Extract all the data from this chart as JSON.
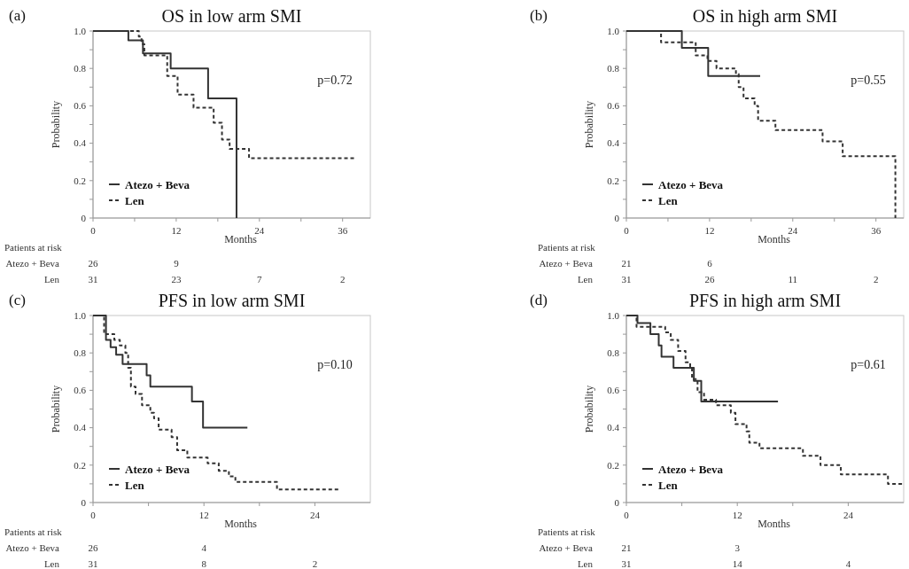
{
  "chart_data": [
    {
      "type": "step",
      "title": "OS in low arm SMI",
      "xlabel": "Months",
      "ylabel": "Probability",
      "xlim": [
        0,
        40
      ],
      "xticks": [
        0,
        {
          "value": 6,
          "label": null
        },
        12,
        {
          "value": 18,
          "label": null
        },
        24,
        {
          "value": 30,
          "label": null
        },
        36
      ],
      "ylim": [
        0,
        1
      ],
      "yticks": [
        0,
        {
          "value": 0.1,
          "label": null
        },
        0.2,
        {
          "value": 0.3,
          "label": null
        },
        0.4,
        {
          "value": 0.5,
          "label": null
        },
        0.6,
        {
          "value": 0.7,
          "label": null
        },
        0.8,
        {
          "value": 0.9,
          "label": null
        },
        {
          "value": 1,
          "label": "1.0"
        }
      ],
      "legend": "bottom left",
      "grid": false,
      "series": [
        {
          "name": "Atezo + Beva",
          "color": "#333333",
          "line_style": "solid",
          "x": [
            0,
            5.1,
            7.2,
            11.2,
            16.6,
            20.7
          ],
          "values": [
            1,
            0.95,
            0.88,
            0.8,
            0.64,
            0
          ]
        },
        {
          "name": "Len",
          "color": "#333333",
          "line_style": "dashed",
          "x": [
            0,
            6.6,
            7.0,
            7.4,
            10.7,
            12.2,
            14.5,
            17.4,
            18.6,
            19.7,
            22.5,
            38.0
          ],
          "values": [
            1,
            0.97,
            0.93,
            0.87,
            0.76,
            0.66,
            0.59,
            0.51,
            0.42,
            0.37,
            0.32,
            0.32
          ]
        }
      ],
      "annotations": [
        "(a)",
        "p=0.72",
        "Patients at risk",
        "26",
        "9",
        "31",
        "23",
        "7",
        "2"
      ]
    },
    {
      "type": "step",
      "title": "OS in high arm SMI",
      "xlabel": "Months",
      "ylabel": "Probability",
      "xlim": [
        0,
        40
      ],
      "xticks": [
        0,
        {
          "value": 6,
          "label": null
        },
        12,
        {
          "value": 18,
          "label": null
        },
        24,
        {
          "value": 30,
          "label": null
        },
        36
      ],
      "ylim": [
        0,
        1
      ],
      "yticks": [
        0,
        {
          "value": 0.1,
          "label": null
        },
        0.2,
        {
          "value": 0.3,
          "label": null
        },
        0.4,
        {
          "value": 0.5,
          "label": null
        },
        0.6,
        {
          "value": 0.7,
          "label": null
        },
        0.8,
        {
          "value": 0.9,
          "label": null
        },
        {
          "value": 1,
          "label": "1.0"
        }
      ],
      "legend": "bottom left",
      "grid": false,
      "series": [
        {
          "name": "Atezo + Beva",
          "color": "#333333",
          "line_style": "solid",
          "x": [
            0,
            8.0,
            11.8,
            19.3
          ],
          "values": [
            1,
            0.91,
            0.76,
            0.76
          ]
        },
        {
          "name": "Len",
          "color": "#333333",
          "line_style": "dashed",
          "x": [
            0,
            5.0,
            10.0,
            11.7,
            13.0,
            15.8,
            16.2,
            16.9,
            18.5,
            19.0,
            21.5,
            28.3,
            31.2,
            38.8
          ],
          "values": [
            1,
            0.94,
            0.87,
            0.84,
            0.8,
            0.77,
            0.7,
            0.64,
            0.6,
            0.52,
            0.47,
            0.41,
            0.33,
            0
          ]
        }
      ],
      "annotations": [
        "(b)",
        "p=0.55",
        "Patients at risk",
        "21",
        "6",
        "31",
        "26",
        "11",
        "2"
      ]
    },
    {
      "type": "step",
      "title": "PFS in low arm SMI",
      "xlabel": "Months",
      "ylabel": "Probability",
      "xlim": [
        0,
        30
      ],
      "xticks": [
        0,
        {
          "value": 6,
          "label": null
        },
        12,
        {
          "value": 18,
          "label": null
        },
        24
      ],
      "ylim": [
        0,
        1
      ],
      "yticks": [
        0,
        {
          "value": 0.1,
          "label": null
        },
        0.2,
        {
          "value": 0.3,
          "label": null
        },
        0.4,
        {
          "value": 0.5,
          "label": null
        },
        0.6,
        {
          "value": 0.7,
          "label": null
        },
        0.8,
        {
          "value": 0.9,
          "label": null
        },
        {
          "value": 1,
          "label": "1.0"
        }
      ],
      "legend": "bottom left",
      "grid": false,
      "series": [
        {
          "name": "Atezo + Beva",
          "color": "#333333",
          "line_style": "solid",
          "x": [
            0,
            1.4,
            1.9,
            2.5,
            3.2,
            5.8,
            6.2,
            10.7,
            11.9,
            16.7
          ],
          "values": [
            1,
            0.87,
            0.83,
            0.79,
            0.74,
            0.68,
            0.62,
            0.54,
            0.4,
            0.4
          ]
        },
        {
          "name": "Len",
          "color": "#333333",
          "line_style": "dashed",
          "x": [
            0,
            1.2,
            2.3,
            2.9,
            3.5,
            3.8,
            4.1,
            4.6,
            5.3,
            6.2,
            6.6,
            7.1,
            8.5,
            9.1,
            10.2,
            12.4,
            13.6,
            14.7,
            15.4,
            19.9,
            26.7
          ],
          "values": [
            1,
            0.9,
            0.87,
            0.84,
            0.8,
            0.72,
            0.62,
            0.58,
            0.52,
            0.48,
            0.45,
            0.39,
            0.35,
            0.28,
            0.24,
            0.21,
            0.17,
            0.14,
            0.11,
            0.07,
            0.07
          ]
        }
      ],
      "annotations": [
        "(c)",
        "p=0.10",
        "Patients at risk",
        "26",
        "4",
        "31",
        "8",
        "2"
      ]
    },
    {
      "type": "step",
      "title": "PFS in high arm SMI",
      "xlabel": "Months",
      "ylabel": "Probability",
      "xlim": [
        0,
        30
      ],
      "xticks": [
        0,
        {
          "value": 6,
          "label": null
        },
        12,
        {
          "value": 18,
          "label": null
        },
        24
      ],
      "ylim": [
        0,
        1
      ],
      "yticks": [
        0,
        {
          "value": 0.1,
          "label": null
        },
        0.2,
        {
          "value": 0.3,
          "label": null
        },
        0.4,
        {
          "value": 0.5,
          "label": null
        },
        0.6,
        {
          "value": 0.7,
          "label": null
        },
        0.8,
        {
          "value": 0.9,
          "label": null
        },
        {
          "value": 1,
          "label": "1.0"
        }
      ],
      "legend": "bottom left",
      "grid": false,
      "series": [
        {
          "name": "Atezo + Beva",
          "color": "#333333",
          "line_style": "solid",
          "x": [
            0,
            1.2,
            2.6,
            3.5,
            3.8,
            5.1,
            7.3,
            8.1,
            16.4
          ],
          "values": [
            1,
            0.96,
            0.9,
            0.84,
            0.78,
            0.72,
            0.65,
            0.54,
            0.54
          ]
        },
        {
          "name": "Len",
          "color": "#333333",
          "line_style": "dashed",
          "x": [
            0,
            1.1,
            4.2,
            4.8,
            5.6,
            6.4,
            6.9,
            7.1,
            7.7,
            8.4,
            9.7,
            11.3,
            11.8,
            13.0,
            13.3,
            14.4,
            19.1,
            21.0,
            23.2,
            28.3,
            30
          ],
          "values": [
            1,
            0.94,
            0.91,
            0.87,
            0.81,
            0.75,
            0.72,
            0.66,
            0.59,
            0.55,
            0.52,
            0.48,
            0.42,
            0.38,
            0.32,
            0.29,
            0.25,
            0.2,
            0.15,
            0.1,
            0.1
          ]
        }
      ],
      "annotations": [
        "(d)",
        "p=0.61",
        "Patients at risk",
        "21",
        "3",
        "31",
        "14",
        "4"
      ]
    }
  ]
}
